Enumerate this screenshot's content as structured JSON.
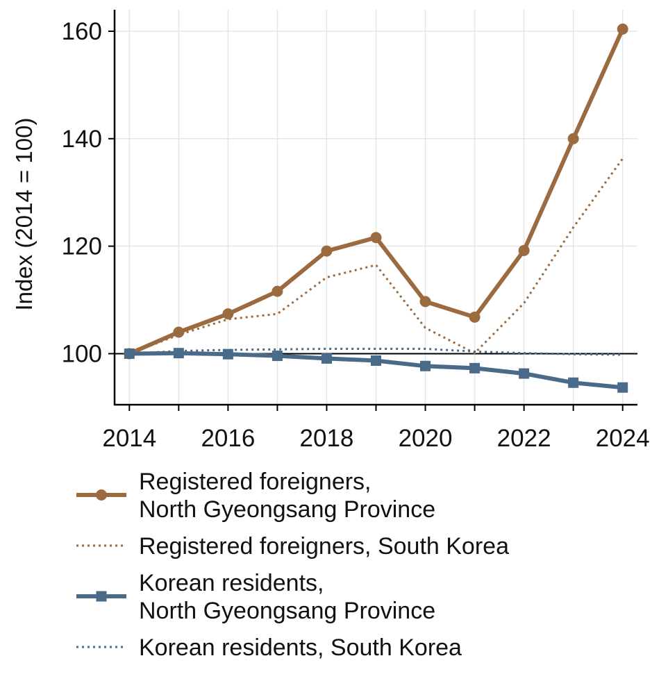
{
  "chart_data": {
    "type": "line",
    "title": "",
    "xlabel": "",
    "ylabel": "Index (2014 = 100)",
    "xlim": [
      2013.7,
      2024.3
    ],
    "ylim": [
      90.5,
      164
    ],
    "grid": true,
    "reference_line": 100,
    "x": [
      2014,
      2015,
      2016,
      2017,
      2018,
      2019,
      2020,
      2021,
      2022,
      2023,
      2024
    ],
    "x_ticks": [
      "2014",
      "2016",
      "2018",
      "2020",
      "2022",
      "2024"
    ],
    "y_ticks": [
      "100",
      "120",
      "140",
      "160"
    ],
    "legend_position": "bottom",
    "series": [
      {
        "name": "Registered foreigners, North Gyeongsang Province",
        "legend_lines": [
          "Registered foreigners,",
          "North Gyeongsang Province"
        ],
        "color": "#9B6A3E",
        "style": "solid",
        "marker": "circle",
        "values": [
          100,
          104.0,
          107.4,
          111.6,
          119.1,
          121.6,
          109.7,
          106.8,
          119.2,
          140.0,
          160.4
        ]
      },
      {
        "name": "Registered foreigners, South Korea",
        "legend_lines": [
          "Registered foreigners, South Korea"
        ],
        "color": "#9B6A3E",
        "style": "dotted",
        "marker": "none",
        "values": [
          100,
          103.5,
          106.4,
          107.4,
          114.2,
          116.5,
          104.8,
          100.1,
          109.4,
          123.5,
          136.3
        ]
      },
      {
        "name": "Korean residents, North Gyeongsang Province",
        "legend_lines": [
          "Korean residents,",
          "North Gyeongsang Province"
        ],
        "color": "#4A6A8A",
        "style": "solid",
        "marker": "square",
        "values": [
          100,
          100.1,
          99.9,
          99.6,
          99.1,
          98.7,
          97.7,
          97.3,
          96.3,
          94.6,
          93.7
        ]
      },
      {
        "name": "Korean residents, South Korea",
        "legend_lines": [
          "Korean residents, South Korea"
        ],
        "color": "#4A6A8A",
        "style": "dotted",
        "marker": "none",
        "values": [
          100,
          100.5,
          100.7,
          100.8,
          100.9,
          100.9,
          100.9,
          100.4,
          100.1,
          99.9,
          99.8
        ]
      }
    ]
  }
}
